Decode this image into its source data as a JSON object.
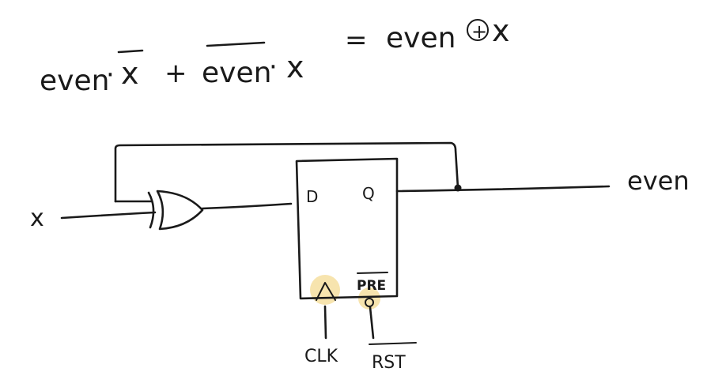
{
  "equation": {
    "term1_var": "even",
    "term1_dot": "·",
    "term1_bar_var": "x",
    "plus": "+",
    "term2_bar_var": "even",
    "term2_dot": "·",
    "term2_var": "x",
    "equals": "=",
    "rhs_var": "even",
    "xor_symbol": "+",
    "rhs_x": "x"
  },
  "circuit": {
    "input_label": "x",
    "output_label": "even",
    "flipflop": {
      "d_label": "D",
      "q_label": "Q",
      "pre_label": "PRE"
    },
    "clk_label": "CLK",
    "rst_label": "RST"
  },
  "colors": {
    "ink": "#1a1a1a",
    "highlight": "#f6dfa0"
  }
}
